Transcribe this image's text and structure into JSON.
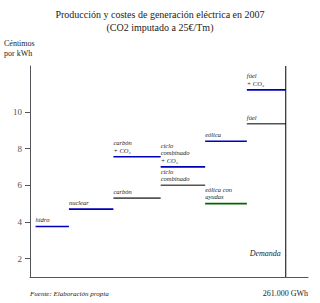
{
  "chart_data": {
    "type": "line",
    "title": "Producción y costes de generación eléctrica en 2007",
    "subtitle": "(CO2 imputado a 25€/Tm)",
    "ylabel": "Céntimos\npor kWh",
    "xlabel": "261.000 GWh",
    "source": "Fuente: Elaboración propia",
    "xlim": [
      0,
      100
    ],
    "ylim": [
      1.0,
      12.5
    ],
    "yticks": [
      2,
      4,
      6,
      8,
      10
    ],
    "grid": false,
    "tick_labels": "y",
    "series": [
      {
        "name": "hidro",
        "color": "#0000bb",
        "x": [
          2,
          14
        ],
        "values": [
          3.75,
          3.75
        ]
      },
      {
        "name": "nuclear",
        "color": "#0000bb",
        "x": [
          14,
          30
        ],
        "values": [
          4.7,
          4.7
        ]
      },
      {
        "name": "carbón",
        "color": "#555555",
        "x": [
          30,
          47
        ],
        "values": [
          5.3,
          5.3
        ]
      },
      {
        "name": "carbón\n+ CO₂",
        "color": "#0000bb",
        "x": [
          30,
          47
        ],
        "values": [
          7.55,
          7.55
        ]
      },
      {
        "name": "ciclo\ncombinado",
        "color": "#555555",
        "x": [
          47,
          63
        ],
        "values": [
          6.0,
          6.0
        ]
      },
      {
        "name": "ciclo\ncombinado\n+ CO₂",
        "color": "#0000bb",
        "x": [
          47,
          63
        ],
        "values": [
          7.0,
          7.0
        ]
      },
      {
        "name": "eólica con\nayudas",
        "color": "#006600",
        "x": [
          63,
          78
        ],
        "values": [
          5.0,
          5.0
        ]
      },
      {
        "name": "eólica",
        "color": "#0000bb",
        "x": [
          63,
          78
        ],
        "values": [
          8.4,
          8.4
        ]
      },
      {
        "name": "fúel",
        "color": "#555555",
        "x": [
          78,
          92
        ],
        "values": [
          9.35,
          9.35
        ]
      },
      {
        "name": "fúel\n+ CO₂",
        "color": "#0000bb",
        "x": [
          78,
          92
        ],
        "values": [
          11.2,
          11.2
        ]
      }
    ],
    "vertical_line": {
      "x": 92,
      "label": "Demanda",
      "color": "#000000"
    }
  }
}
